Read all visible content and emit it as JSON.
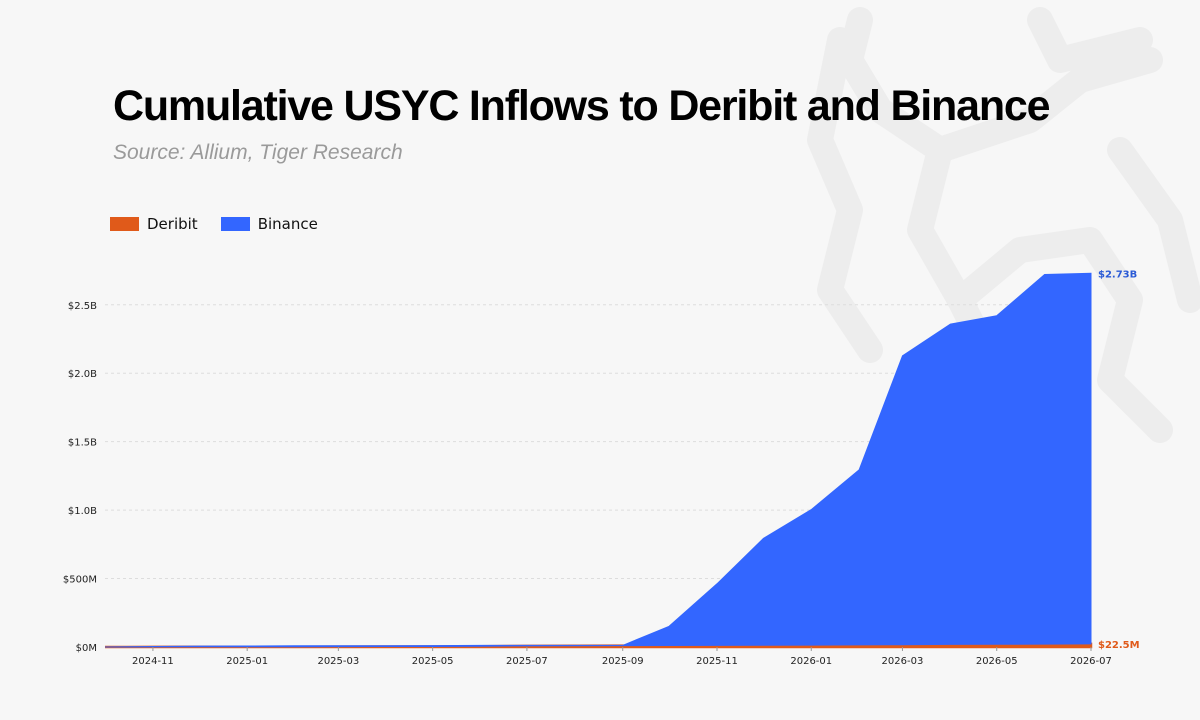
{
  "title": "Cumulative USYC Inflows to Deribit and Binance",
  "subtitle": "Source: Allium, Tiger Research",
  "colors": {
    "deribit": "#e05a1a",
    "binance": "#3366ff",
    "background": "#f7f7f7",
    "grid": "#dddddd"
  },
  "chart_data": {
    "type": "area",
    "stacked": true,
    "x_ticks": [
      "2024-11",
      "2025-01",
      "2025-03",
      "2025-05",
      "2025-07",
      "2025-09",
      "2025-11",
      "2026-01",
      "2026-03",
      "2026-05",
      "2026-07"
    ],
    "y_ticks": [
      "$0M",
      "$500M",
      "$1.0B",
      "$1.5B",
      "$2.0B",
      "$2.5B"
    ],
    "ylim": [
      0,
      2900000000
    ],
    "grid": true,
    "legend": {
      "position": "top-left",
      "entries": [
        "Deribit",
        "Binance"
      ]
    },
    "x": [
      "2024-10",
      "2024-11",
      "2024-12",
      "2025-01",
      "2025-02",
      "2025-03",
      "2025-04",
      "2025-05",
      "2025-06",
      "2025-07",
      "2025-08",
      "2025-09",
      "2025-10",
      "2025-11",
      "2025-12",
      "2026-01",
      "2026-02",
      "2026-03",
      "2026-04",
      "2026-05",
      "2026-06",
      "2026-07"
    ],
    "series": [
      {
        "name": "Deribit",
        "color": "#e05a1a",
        "values": [
          0,
          1000000,
          1500000,
          2000000,
          2500000,
          3000000,
          3500000,
          4000000,
          6000000,
          8000000,
          9000000,
          10000000,
          11000000,
          12000000,
          13000000,
          14000000,
          15000000,
          17000000,
          19000000,
          20000000,
          21000000,
          22500000
        ],
        "end_label": "$22.5M"
      },
      {
        "name": "Binance",
        "color": "#3366ff",
        "values": [
          0,
          3000000,
          5000000,
          5000000,
          6000000,
          6000000,
          6000000,
          6000000,
          6000000,
          4000000,
          3000000,
          2000000,
          140000000,
          450000000,
          780000000,
          990000000,
          1280000000,
          2110000000,
          2340000000,
          2400000000,
          2700000000,
          2707500000
        ],
        "end_label": "$2.73B"
      }
    ]
  }
}
